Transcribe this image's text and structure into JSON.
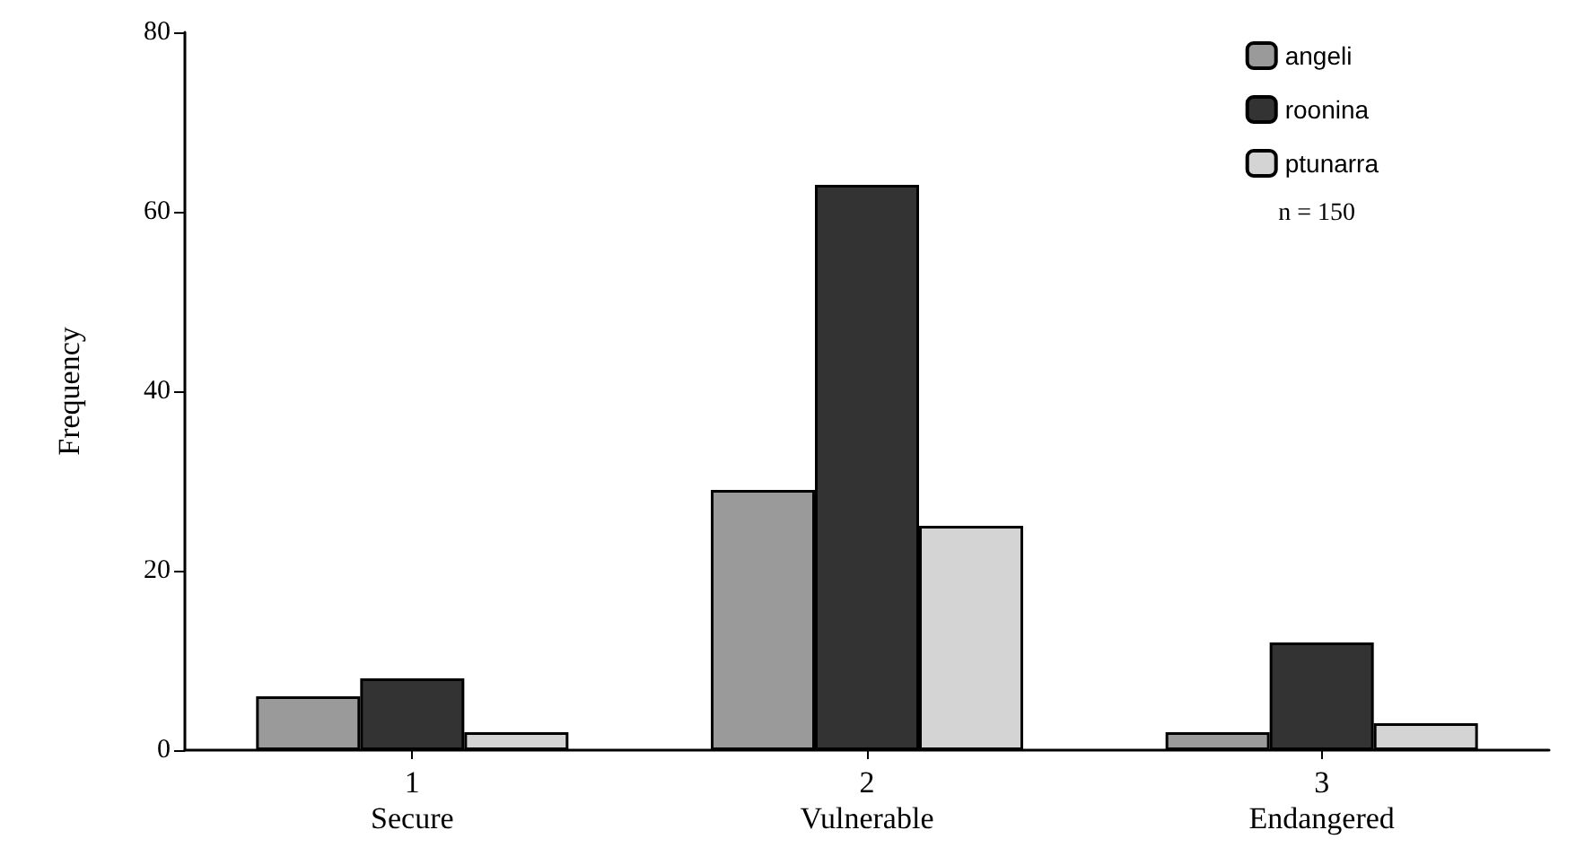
{
  "chart_data": {
    "type": "bar",
    "ylabel": "Frequency",
    "categories": [
      "1\nSecure",
      "2\nVulnerable",
      "3\nEndangered"
    ],
    "series": [
      {
        "name": "angeli",
        "color": "#9a9a9a",
        "values": [
          6,
          29,
          2
        ]
      },
      {
        "name": "roonina",
        "color": "#333333",
        "values": [
          8,
          63,
          12
        ]
      },
      {
        "name": "ptunarra",
        "color": "#d4d4d4",
        "values": [
          2,
          25,
          3
        ]
      }
    ],
    "ylim": [
      0,
      80
    ],
    "yticks": [
      0,
      20,
      40,
      60,
      80
    ],
    "grid": false,
    "legend": "top right",
    "annotations": [
      "n = 150"
    ]
  }
}
